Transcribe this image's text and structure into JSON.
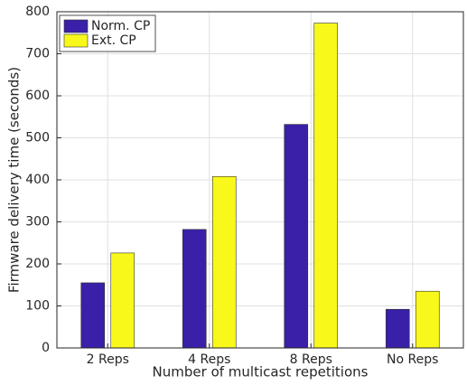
{
  "chart_data": {
    "type": "bar",
    "xlabel": "Number of multicast repetitions",
    "ylabel": "Firmware delivery time (seconds)",
    "categories": [
      "2 Reps",
      "4 Reps",
      "8 Reps",
      "No Reps"
    ],
    "series": [
      {
        "name": "Norm. CP",
        "color": "#3a1fa8",
        "values": [
          155,
          282,
          532,
          92
        ]
      },
      {
        "name": "Ext. CP",
        "color": "#f8f81a",
        "values": [
          226,
          408,
          773,
          135
        ]
      }
    ],
    "ylim": [
      0,
      800
    ],
    "yticks": [
      0,
      100,
      200,
      300,
      400,
      500,
      600,
      700,
      800
    ],
    "grid": true,
    "legend": "upper-left"
  }
}
